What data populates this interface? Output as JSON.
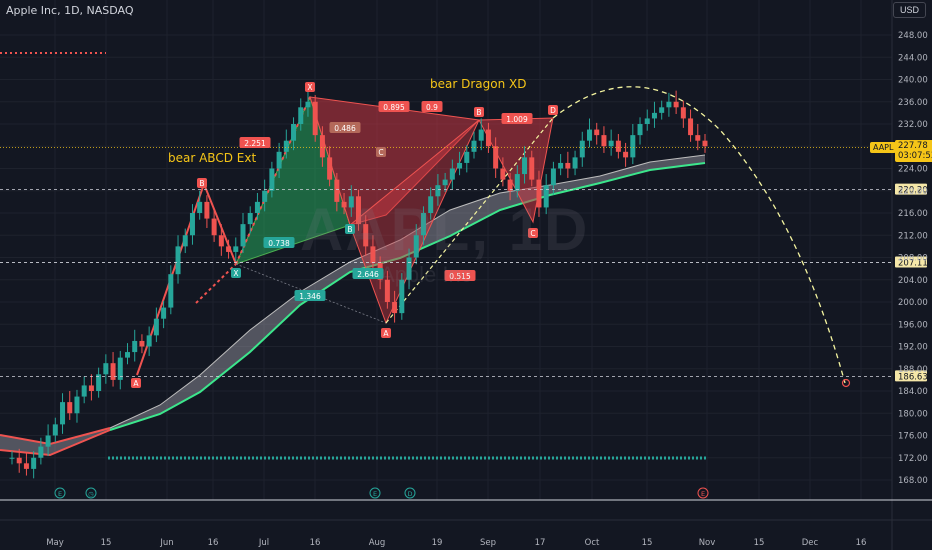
{
  "header": {
    "symbol_title": "Apple Inc, 1D, NASDAQ",
    "currency": "USD"
  },
  "watermark": {
    "ticker": "AAPL, 1D",
    "name": "Apple Inc"
  },
  "last_price": {
    "symbol": "AAPL",
    "value": "227.78",
    "countdown": "03:07:53",
    "color": "#f5c518"
  },
  "pattern_labels": {
    "abcd": "bear ABCD Ext",
    "dragon": "bear Dragon XD"
  },
  "level_tags": [
    "220.20",
    "207.11",
    "186.63"
  ],
  "chart_data": {
    "type": "candlestick",
    "title": "Apple Inc, 1D, NASDAQ",
    "y_axis": {
      "range": [
        164,
        251
      ],
      "ticks": [
        "248.00",
        "244.00",
        "240.00",
        "236.00",
        "232.00",
        "228.00",
        "224.00",
        "220.00",
        "216.00",
        "212.00",
        "208.00",
        "204.00",
        "200.00",
        "196.00",
        "192.00",
        "188.00",
        "184.00",
        "180.00",
        "176.00",
        "172.00",
        "168.00"
      ]
    },
    "x_axis": {
      "ticks": [
        "May",
        "15",
        "Jun",
        "16",
        "Jul",
        "16",
        "Aug",
        "19",
        "Sep",
        "17",
        "Oct",
        "15",
        "Nov",
        "15",
        "Dec",
        "16"
      ]
    },
    "horizontal_levels": [
      {
        "value": 220.2,
        "label": "220.20"
      },
      {
        "value": 207.11,
        "label": "207.11"
      },
      {
        "value": 186.63,
        "label": "186.63"
      },
      {
        "value": 227.78,
        "label": "227.78"
      }
    ],
    "abcd_pattern": {
      "points": [
        {
          "label": "A",
          "price": 187.5
        },
        {
          "label": "B",
          "price": 220.5
        },
        {
          "label": "C",
          "price": 207.5
        },
        {
          "label": "X",
          "price": 237.4
        }
      ],
      "ratios": [
        "0.738",
        "2.251"
      ]
    },
    "dragon_pattern": {
      "points": [
        {
          "label": "X",
          "price": 237.4
        },
        {
          "label": "A",
          "price": 196.0
        },
        {
          "label": "B",
          "price": 232.5
        },
        {
          "label": "C",
          "price": 213.5
        },
        {
          "label": "D",
          "price": 233.0
        }
      ],
      "ratios": [
        "0.895",
        "0.9",
        "1.009",
        "0.486",
        "2.646",
        "0.515",
        "1.346"
      ]
    },
    "annotations": [
      "X",
      "B",
      "C",
      "A",
      "B",
      "D",
      "C",
      "X",
      "A",
      "B",
      "C",
      "A"
    ],
    "projection_target": 186.63,
    "colors": {
      "up": "#26a69a",
      "down": "#ef5350",
      "band_up": "#3ce68c",
      "band_down": "#ef5350",
      "accent": "#f5c518"
    }
  }
}
